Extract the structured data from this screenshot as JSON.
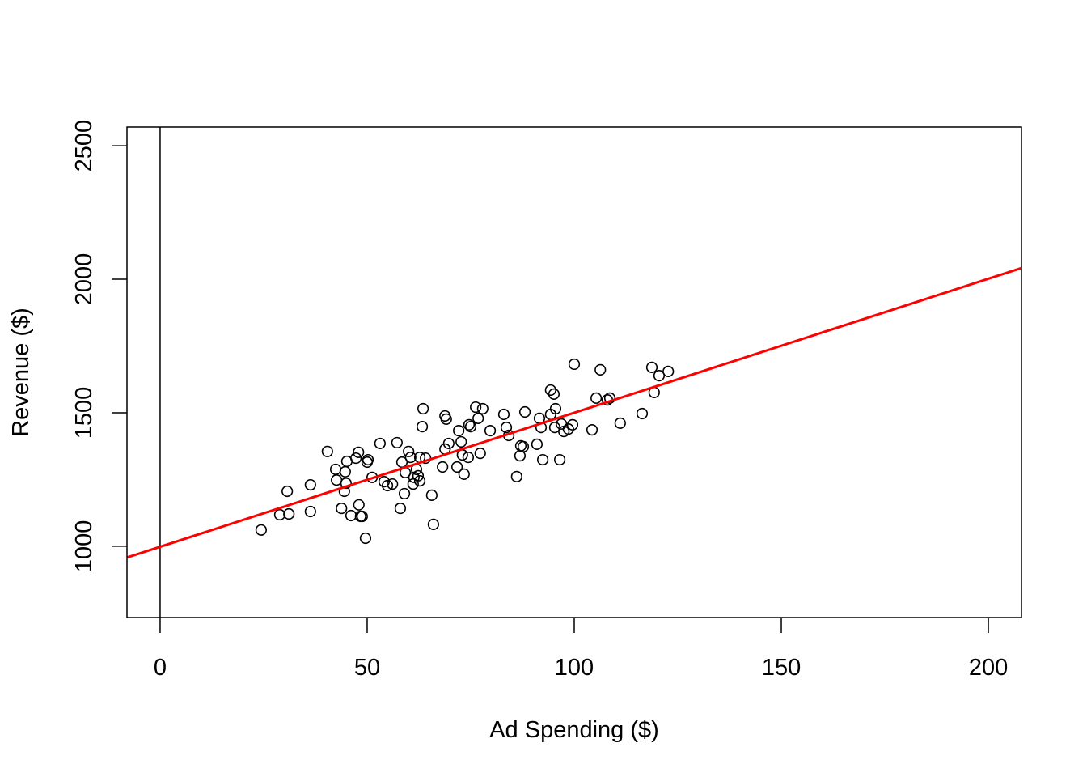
{
  "chart_data": {
    "type": "scatter",
    "title": "",
    "xlabel": "Ad Spending ($)",
    "ylabel": "Revenue ($)",
    "xlim": [
      -8,
      208
    ],
    "ylim": [
      733,
      2570
    ],
    "xticks": [
      0,
      50,
      100,
      150,
      200
    ],
    "yticks": [
      1000,
      1500,
      2000,
      2500
    ],
    "xtick_labels": [
      "0",
      "50",
      "100",
      "150",
      "200"
    ],
    "ytick_labels": [
      "1000",
      "1500",
      "2000",
      "2500"
    ],
    "grid": false,
    "legend": "none",
    "regression_line": {
      "intercept": 998,
      "slope": 5.02,
      "color": "#ff0000"
    },
    "vertical_line": {
      "x": 0,
      "color": "#000000"
    },
    "point_color": "#000000",
    "x": [
      24.4,
      28.9,
      31.1,
      30.7,
      36.3,
      36.3,
      40.4,
      42.4,
      42.6,
      43.8,
      44.5,
      44.7,
      44.9,
      45.1,
      46.1,
      47.3,
      47.9,
      48.0,
      48.4,
      48.8,
      49.6,
      50.0,
      50.2,
      51.2,
      53.1,
      54.1,
      54.9,
      56.1,
      57.2,
      58.0,
      58.4,
      59.0,
      59.2,
      60.0,
      60.5,
      61.1,
      61.3,
      61.9,
      62.3,
      62.7,
      62.7,
      63.3,
      63.5,
      64.1,
      65.6,
      66.0,
      68.2,
      68.8,
      68.8,
      69.1,
      69.7,
      71.7,
      72.1,
      72.7,
      73.0,
      73.4,
      74.4,
      74.6,
      75.0,
      76.2,
      76.8,
      77.3,
      77.9,
      79.7,
      83.0,
      83.6,
      84.2,
      86.1,
      86.9,
      87.1,
      87.7,
      88.1,
      91.0,
      91.6,
      92.0,
      92.4,
      94.3,
      94.3,
      95.1,
      95.3,
      95.5,
      96.5,
      96.9,
      97.5,
      98.6,
      99.6,
      100.0,
      104.3,
      105.3,
      106.3,
      108.0,
      108.6,
      111.1,
      116.4,
      118.75,
      119.3,
      120.5,
      122.7
    ],
    "y": [
      1061,
      1118,
      1121,
      1206,
      1230,
      1130,
      1355,
      1288,
      1248,
      1142,
      1206,
      1279,
      1236,
      1318,
      1115,
      1330,
      1352,
      1155,
      1112,
      1112,
      1030,
      1315,
      1324,
      1258,
      1385,
      1242,
      1227,
      1233,
      1388,
      1142,
      1315,
      1197,
      1276,
      1355,
      1333,
      1233,
      1258,
      1288,
      1264,
      1245,
      1333,
      1448,
      1515,
      1330,
      1191,
      1082,
      1297,
      1364,
      1488,
      1476,
      1385,
      1297,
      1433,
      1391,
      1342,
      1270,
      1333,
      1455,
      1448,
      1521,
      1479,
      1348,
      1515,
      1433,
      1494,
      1445,
      1415,
      1261,
      1339,
      1376,
      1373,
      1503,
      1382,
      1479,
      1445,
      1324,
      1585,
      1494,
      1570,
      1445,
      1515,
      1324,
      1458,
      1430,
      1439,
      1455,
      1682,
      1436,
      1555,
      1661,
      1548,
      1555,
      1461,
      1497,
      1670,
      1576,
      1639,
      1655
    ]
  }
}
